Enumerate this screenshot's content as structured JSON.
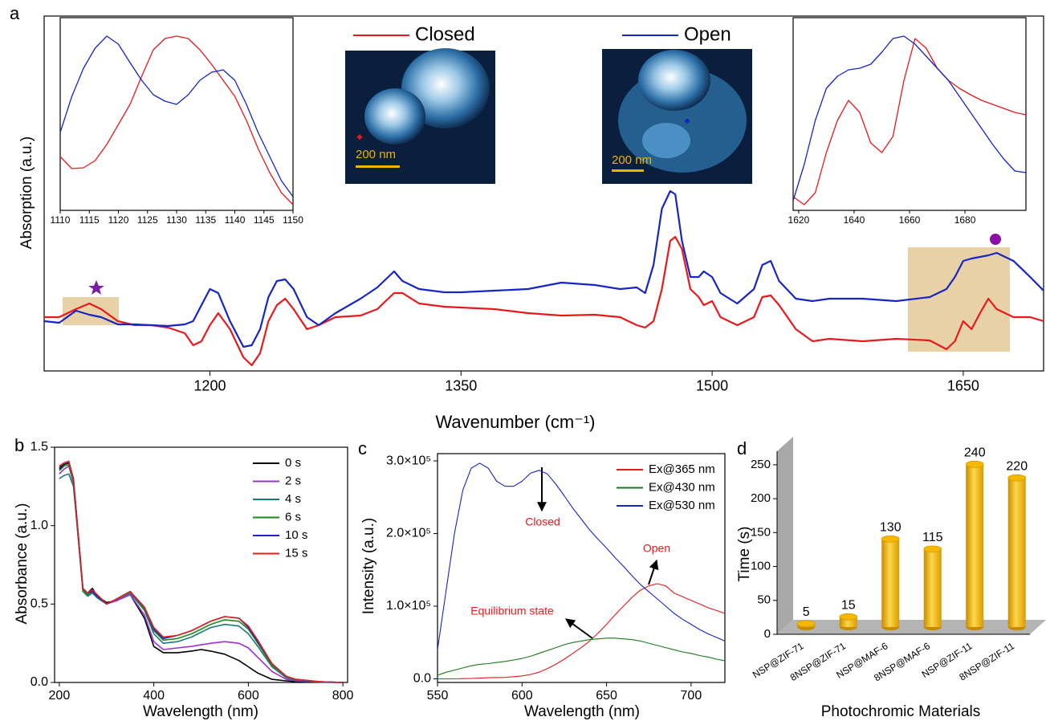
{
  "chart_data": [
    {
      "panel": "a",
      "type": "line",
      "x_label": "Wavenumber (cm⁻¹)",
      "y_label": "Absorption (a.u.)",
      "image_labels": [
        "200 nm",
        "200 nm"
      ],
      "legend": "top-center",
      "xlim": [
        1101,
        1698
      ],
      "ylim": [
        0,
        442
      ],
      "xticks": [
        1200,
        1350,
        1500,
        1650
      ],
      "x": [
        1101,
        1110,
        1120,
        1128,
        1135,
        1145,
        1155,
        1165,
        1175,
        1185,
        1190,
        1195,
        1200,
        1205,
        1212,
        1220,
        1225,
        1230,
        1235,
        1240,
        1245,
        1250,
        1258,
        1265,
        1275,
        1290,
        1300,
        1310,
        1315,
        1325,
        1340,
        1350,
        1370,
        1390,
        1410,
        1430,
        1445,
        1455,
        1460,
        1465,
        1470,
        1475,
        1478,
        1482,
        1487,
        1492,
        1495,
        1500,
        1505,
        1515,
        1525,
        1530,
        1535,
        1540,
        1550,
        1560,
        1570,
        1590,
        1610,
        1630,
        1640,
        1645,
        1650,
        1655,
        1660,
        1665,
        1670,
        1680,
        1690,
        1698
      ],
      "series": [
        {
          "name": "Closed",
          "color": "#e8191b",
          "values": [
            67,
            67,
            77,
            84,
            77,
            62,
            57,
            57,
            54,
            47,
            32,
            37,
            57,
            72,
            52,
            17,
            7,
            22,
            62,
            82,
            90,
            77,
            52,
            57,
            67,
            69,
            77,
            97,
            97,
            84,
            80,
            79,
            77,
            72,
            69,
            70,
            67,
            57,
            54,
            62,
            102,
            162,
            167,
            152,
            102,
            92,
            82,
            87,
            67,
            57,
            67,
            92,
            94,
            82,
            52,
            37,
            40,
            37,
            40,
            38,
            27,
            37,
            62,
            52,
            72,
            90,
            77,
            67,
            67,
            62
          ]
        },
        {
          "name": "Open",
          "color": "#1625c4",
          "values": [
            62,
            60,
            75,
            70,
            67,
            58,
            58,
            57,
            56,
            58,
            62,
            82,
            102,
            97,
            62,
            30,
            32,
            52,
            92,
            112,
            114,
            102,
            67,
            57,
            72,
            90,
            104,
            124,
            112,
            102,
            98,
            98,
            100,
            102,
            110,
            107,
            102,
            104,
            97,
            132,
            202,
            224,
            220,
            162,
            117,
            117,
            124,
            117,
            97,
            84,
            102,
            132,
            137,
            112,
            90,
            87,
            90,
            90,
            87,
            92,
            102,
            117,
            137,
            140,
            142,
            144,
            147,
            137,
            117,
            100
          ]
        }
      ]
    },
    {
      "type": "line",
      "xlim": [
        1110,
        1150
      ],
      "ylim": [
        0,
        240
      ],
      "xticks": [
        1110,
        1115,
        1120,
        1125,
        1130,
        1135,
        1140,
        1145,
        1150
      ],
      "x": [
        1110,
        1112,
        1114,
        1116,
        1118,
        1120,
        1122,
        1124,
        1126,
        1128,
        1130,
        1132,
        1134,
        1136,
        1138,
        1140,
        1142,
        1144,
        1146,
        1148,
        1150
      ],
      "series": [
        {
          "color": "#e8191b",
          "values": [
            67,
            52,
            53,
            62,
            82,
            107,
            132,
            167,
            200,
            214,
            217,
            214,
            200,
            182,
            162,
            142,
            112,
            77,
            47,
            22,
            7
          ]
        },
        {
          "color": "#1625c4",
          "values": [
            97,
            142,
            177,
            202,
            217,
            207,
            184,
            162,
            144,
            136,
            132,
            144,
            162,
            172,
            175,
            162,
            132,
            97,
            67,
            37,
            17
          ]
        }
      ]
    },
    {
      "type": "line",
      "xlim": [
        1618,
        1702
      ],
      "ylim": [
        0,
        240
      ],
      "xticks": [
        1620,
        1640,
        1660,
        1680
      ],
      "x": [
        1618,
        1622,
        1626,
        1630,
        1634,
        1638,
        1642,
        1646,
        1650,
        1654,
        1658,
        1662,
        1666,
        1670,
        1674,
        1678,
        1682,
        1686,
        1690,
        1694,
        1698,
        1702
      ],
      "series": [
        {
          "color": "#e8191b",
          "values": [
            17,
            7,
            22,
            72,
            112,
            137,
            122,
            84,
            72,
            92,
            162,
            214,
            202,
            177,
            162,
            152,
            144,
            137,
            132,
            127,
            122,
            119
          ]
        },
        {
          "color": "#1625c4",
          "values": [
            12,
            57,
            112,
            152,
            167,
            175,
            177,
            182,
            197,
            214,
            217,
            207,
            192,
            177,
            162,
            142,
            122,
            102,
            82,
            64,
            49,
            47
          ]
        }
      ]
    },
    {
      "panel": "b",
      "type": "line",
      "x_label": "Wavelength (nm)",
      "y_label": "Absorbance (a.u.)",
      "legend": "top-right",
      "xlim": [
        190,
        810
      ],
      "ylim": [
        0,
        1.5
      ],
      "xticks": [
        200,
        400,
        600,
        800
      ],
      "yticks": [
        {
          "value": 0,
          "label": "0.0"
        },
        0.5,
        {
          "value": 1,
          "label": "1.0"
        },
        1.5
      ],
      "x": [
        200,
        210,
        220,
        230,
        240,
        250,
        260,
        270,
        280,
        300,
        320,
        350,
        380,
        400,
        420,
        450,
        480,
        500,
        520,
        550,
        580,
        600,
        620,
        650,
        680,
        700,
        750,
        800
      ],
      "series": [
        {
          "name": "0 s",
          "color": "#000000",
          "values": [
            1.36,
            1.39,
            1.4,
            1.28,
            0.93,
            0.59,
            0.57,
            0.6,
            0.55,
            0.51,
            0.52,
            0.56,
            0.41,
            0.23,
            0.19,
            0.19,
            0.2,
            0.21,
            0.2,
            0.18,
            0.14,
            0.1,
            0.06,
            0.02,
            0.01,
            0.005,
            0.002,
            0
          ]
        },
        {
          "name": "2 s",
          "color": "#9b30d0",
          "values": [
            1.33,
            1.36,
            1.38,
            1.27,
            0.93,
            0.58,
            0.56,
            0.58,
            0.54,
            0.5,
            0.52,
            0.56,
            0.43,
            0.26,
            0.21,
            0.22,
            0.23,
            0.24,
            0.25,
            0.26,
            0.25,
            0.22,
            0.16,
            0.07,
            0.02,
            0.01,
            0.003,
            0
          ]
        },
        {
          "name": "4 s",
          "color": "#1a7a7a",
          "values": [
            1.3,
            1.32,
            1.33,
            1.25,
            0.92,
            0.58,
            0.55,
            0.57,
            0.54,
            0.5,
            0.53,
            0.57,
            0.46,
            0.31,
            0.25,
            0.26,
            0.29,
            0.32,
            0.35,
            0.37,
            0.36,
            0.31,
            0.23,
            0.1,
            0.03,
            0.015,
            0.005,
            0
          ]
        },
        {
          "name": "6 s",
          "color": "#1a8a1a",
          "values": [
            1.35,
            1.38,
            1.39,
            1.28,
            0.94,
            0.59,
            0.56,
            0.58,
            0.55,
            0.5,
            0.53,
            0.58,
            0.47,
            0.33,
            0.27,
            0.28,
            0.31,
            0.34,
            0.37,
            0.4,
            0.39,
            0.34,
            0.25,
            0.11,
            0.04,
            0.02,
            0.005,
            0
          ]
        },
        {
          "name": "10 s",
          "color": "#1f1fd0",
          "values": [
            1.37,
            1.4,
            1.41,
            1.3,
            0.95,
            0.6,
            0.57,
            0.58,
            0.55,
            0.5,
            0.53,
            0.58,
            0.48,
            0.34,
            0.28,
            0.3,
            0.33,
            0.36,
            0.39,
            0.42,
            0.41,
            0.35,
            0.26,
            0.12,
            0.04,
            0.02,
            0.005,
            0
          ]
        },
        {
          "name": "15 s",
          "color": "#e02020",
          "values": [
            1.38,
            1.4,
            1.41,
            1.3,
            0.95,
            0.6,
            0.57,
            0.59,
            0.56,
            0.5,
            0.53,
            0.58,
            0.48,
            0.35,
            0.29,
            0.3,
            0.33,
            0.36,
            0.39,
            0.42,
            0.41,
            0.36,
            0.27,
            0.12,
            0.04,
            0.02,
            0.005,
            0
          ]
        }
      ]
    },
    {
      "panel": "c",
      "type": "line",
      "x_label": "Wavelength (nm)",
      "y_label": "Intensity (a.u.)",
      "legend": "top-right",
      "annotations": [
        "Closed",
        "Open",
        "Equilibrium state"
      ],
      "xlim": [
        550,
        720
      ],
      "ylim": [
        -5000,
        310000
      ],
      "xticks": [
        550,
        600,
        650,
        700
      ],
      "yticks": [
        {
          "value": 0,
          "label": "0.0"
        },
        {
          "value": 100000,
          "label": "1.0×10⁵"
        },
        {
          "value": 200000,
          "label": "2.0×10⁵"
        },
        {
          "value": 300000,
          "label": "3.0×10⁵"
        }
      ],
      "x": [
        550,
        555,
        560,
        565,
        570,
        575,
        580,
        585,
        590,
        595,
        600,
        605,
        610,
        615,
        620,
        625,
        630,
        635,
        640,
        645,
        650,
        655,
        660,
        665,
        670,
        675,
        680,
        685,
        690,
        695,
        700,
        705,
        710,
        715,
        720
      ],
      "series": [
        {
          "name": "Ex@365 nm",
          "color": "#e8191b",
          "values": [
            0,
            0,
            0,
            300,
            500,
            1000,
            1500,
            1800,
            2000,
            3000,
            4000,
            6000,
            9000,
            14000,
            20000,
            27000,
            35000,
            43000,
            52000,
            63000,
            75000,
            88000,
            100000,
            112000,
            122000,
            128000,
            131000,
            128000,
            118000,
            113000,
            108000,
            103000,
            98000,
            94000,
            90000
          ]
        },
        {
          "name": "Ex@430 nm",
          "color": "#1a7a1a",
          "values": [
            5000,
            9000,
            12000,
            15000,
            18000,
            20000,
            21000,
            22500,
            24000,
            26000,
            28000,
            31000,
            35000,
            39000,
            43000,
            47000,
            50000,
            52000,
            54000,
            55000,
            56000,
            56000,
            55000,
            54000,
            52000,
            49000,
            46000,
            43000,
            40000,
            37000,
            35000,
            32000,
            30000,
            27000,
            25000
          ]
        },
        {
          "name": "Ex@530 nm",
          "color": "#1625c4",
          "values": [
            40000,
            120000,
            200000,
            260000,
            290000,
            297000,
            290000,
            272000,
            265000,
            265000,
            272000,
            283000,
            287000,
            282000,
            268000,
            252000,
            235000,
            220000,
            205000,
            192000,
            180000,
            167000,
            155000,
            142000,
            130000,
            120000,
            110000,
            100000,
            90000,
            82000,
            75000,
            68000,
            62000,
            57000,
            52000
          ]
        }
      ]
    },
    {
      "panel": "d",
      "type": "bar",
      "x_label": "Photochromic Materials",
      "y_label": "Time (s)",
      "categories": [
        "NSP@ZIF-71",
        "8NSP@ZIF-71",
        "NSP@MAF-6",
        "8NSP@MAF-6",
        "NSP@ZIF-11",
        "8NSP@ZIF-11"
      ],
      "values": [
        5,
        15,
        130,
        115,
        240,
        220
      ],
      "color": "#f5b800",
      "value_label_color": "#e8191b",
      "ylim": [
        0,
        270
      ],
      "yticks": [
        0,
        50,
        100,
        150,
        200,
        250
      ]
    }
  ]
}
